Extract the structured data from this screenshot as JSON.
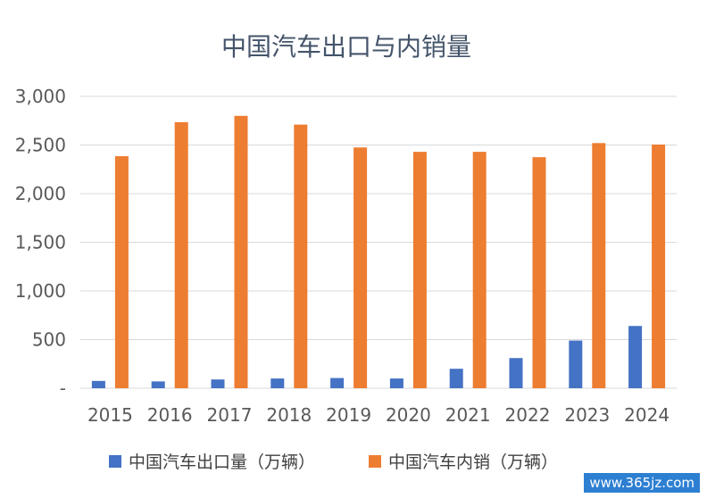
{
  "chart_data": {
    "type": "bar",
    "title": "中国汽车出口与内销量",
    "categories": [
      "2015",
      "2016",
      "2017",
      "2018",
      "2019",
      "2020",
      "2021",
      "2022",
      "2023",
      "2024"
    ],
    "series": [
      {
        "name": "中国汽车出口量（万辆）",
        "color": "#4472c4",
        "values": [
          75,
          70,
          90,
          100,
          105,
          100,
          200,
          310,
          490,
          640
        ]
      },
      {
        "name": "中国汽车内销（万辆）",
        "color": "#ed7d31",
        "values": [
          2385,
          2735,
          2800,
          2710,
          2475,
          2430,
          2430,
          2375,
          2520,
          2505
        ]
      }
    ],
    "y_ticks": [
      "-",
      "500",
      "1,000",
      "1,500",
      "2,000",
      "2,500",
      "3,000"
    ],
    "ylim": [
      0,
      3000
    ],
    "grid": true,
    "legend": "bottom"
  },
  "watermark": "www.365jz.com"
}
